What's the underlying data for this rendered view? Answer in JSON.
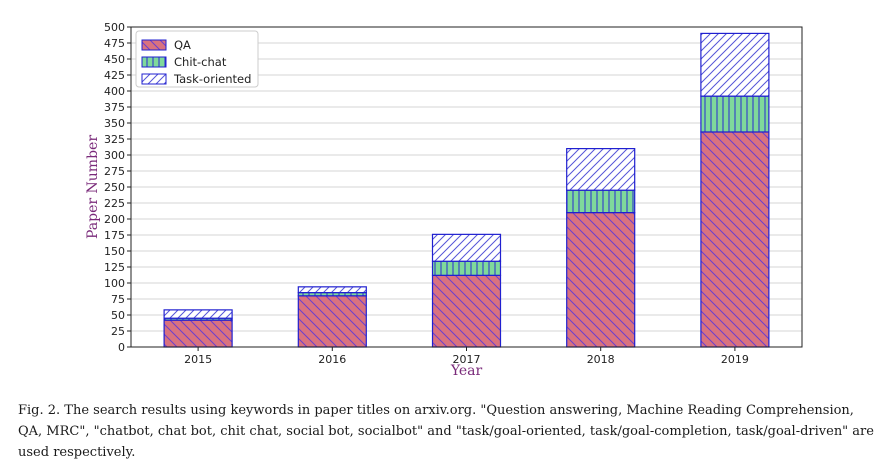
{
  "chart_data": {
    "type": "bar",
    "stacked": true,
    "categories": [
      "2015",
      "2016",
      "2017",
      "2018",
      "2019"
    ],
    "series": [
      {
        "name": "QA",
        "values": [
          42,
          80,
          112,
          210,
          336
        ],
        "color": "#d9727f",
        "pattern": "back-diagonal"
      },
      {
        "name": "Chit-chat",
        "values": [
          3,
          5,
          22,
          35,
          56
        ],
        "color": "#7fd99b",
        "pattern": "vertical"
      },
      {
        "name": "Task-oriented",
        "values": [
          13,
          9,
          42,
          65,
          98
        ],
        "color": "#ffffff",
        "pattern": "forward-diagonal"
      }
    ],
    "xlabel": "Year",
    "ylabel": "Paper Number",
    "ylim": [
      0,
      500
    ],
    "yticks": [
      "0",
      "25",
      "50",
      "75",
      "100",
      "125",
      "150",
      "175",
      "200",
      "225",
      "250",
      "275",
      "300",
      "325",
      "350",
      "375",
      "400",
      "425",
      "450",
      "475",
      "500"
    ],
    "grid": true,
    "legend_position": "top-left",
    "edge_color": "#2020d0"
  },
  "caption": "Fig. 2.  The search results using keywords in paper titles on arxiv.org. \"Question answering, Machine Reading Comprehension, QA, MRC\", \"chatbot, chat bot, chit chat, social bot, socialbot\" and \"task/goal-oriented, task/goal-completion, task/goal-driven\" are used respectively."
}
